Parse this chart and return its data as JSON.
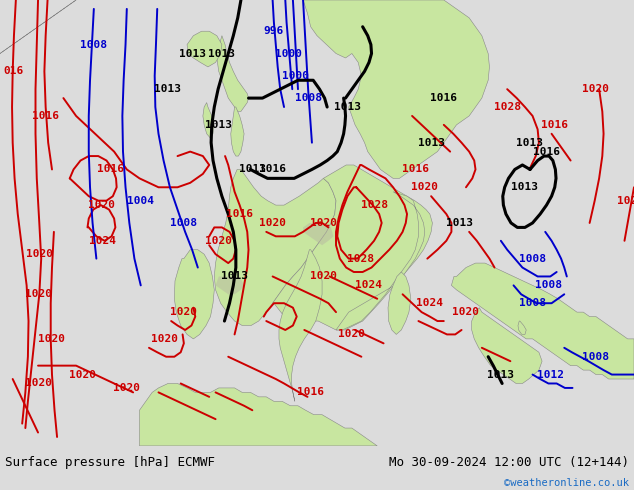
{
  "title_left": "Surface pressure [hPa] ECMWF",
  "title_right": "Mo 30-09-2024 12:00 UTC (12+144)",
  "credit": "©weatheronline.co.uk",
  "land_color": "#c8e6a0",
  "ocean_color": "#dcdcdc",
  "mountain_color": "#b8b8a0",
  "fig_bg_color": "#dcdcdc",
  "bottom_bar_color": "#e8e8e8",
  "label_font_size": 8,
  "title_font_size": 9,
  "credit_color": "#1a6bc4",
  "figsize": [
    6.34,
    4.9
  ],
  "dpi": 100,
  "red_color": "#cc0000",
  "blue_color": "#0000cc",
  "black_color": "#000000",
  "red_lw": 1.4,
  "blue_lw": 1.4,
  "black_lw": 2.2
}
